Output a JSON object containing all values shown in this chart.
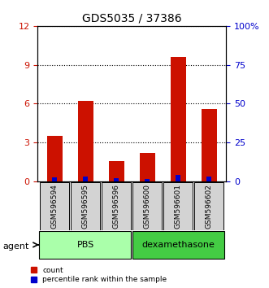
{
  "title": "GDS5035 / 37386",
  "samples": [
    "GSM596594",
    "GSM596595",
    "GSM596596",
    "GSM596600",
    "GSM596601",
    "GSM596602"
  ],
  "count_values": [
    3.5,
    6.2,
    1.6,
    2.2,
    9.6,
    5.6
  ],
  "percentile_values": [
    2.85,
    3.1,
    2.0,
    1.7,
    4.1,
    3.1
  ],
  "ylim_left": [
    0,
    12
  ],
  "ylim_right": [
    0,
    100
  ],
  "yticks_left": [
    0,
    3,
    6,
    9,
    12
  ],
  "yticks_right": [
    0,
    25,
    50,
    75,
    100
  ],
  "ytick_labels_right": [
    "0",
    "25",
    "50",
    "75",
    "100%"
  ],
  "bar_color": "#CC1100",
  "percentile_color": "#0000CC",
  "label_bg": "#d3d3d3",
  "pbs_color": "#aaffaa",
  "dex_color": "#44cc44",
  "agent_label": "agent",
  "legend_count": "count",
  "legend_percentile": "percentile rank within the sample"
}
